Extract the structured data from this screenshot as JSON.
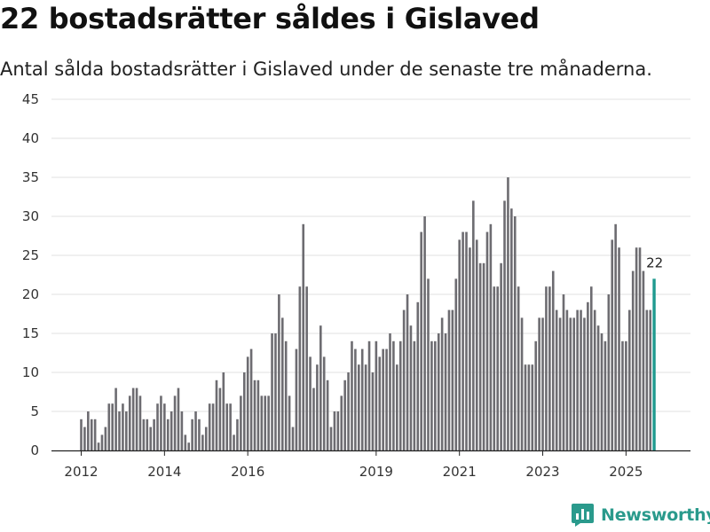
{
  "header": {
    "title": "22 bostadsrätter såldes i Gislaved",
    "subtitle": "Antal sålda bostadsrätter i Gislaved under de senaste tre månaderna."
  },
  "brand": {
    "name": "Newsworthy",
    "icon": "bar-chart-logo-icon",
    "color": "#2a9a8c"
  },
  "colors": {
    "bar": "#6d6c71",
    "highlight": "#1f9a8f",
    "grid": "#e2e2e2"
  },
  "chart_data": {
    "type": "bar",
    "title": "22 bostadsrätter såldes i Gislaved",
    "xlabel": "",
    "ylabel": "",
    "ylim": [
      0,
      45
    ],
    "yticks": [
      0,
      5,
      10,
      15,
      20,
      25,
      30,
      35,
      40,
      45
    ],
    "xticks": [
      {
        "label": "2012",
        "index": 0
      },
      {
        "label": "2014",
        "index": 24
      },
      {
        "label": "2016",
        "index": 48
      },
      {
        "label": "2019",
        "index": 85
      },
      {
        "label": "2021",
        "index": 109
      },
      {
        "label": "2023",
        "index": 133
      },
      {
        "label": "2025",
        "index": 157
      }
    ],
    "grid": true,
    "series": [
      {
        "name": "Antal sålda bostadsrätter",
        "values": [
          4,
          3,
          5,
          4,
          4,
          1,
          2,
          3,
          6,
          6,
          8,
          5,
          6,
          5,
          7,
          8,
          8,
          7,
          4,
          4,
          3,
          4,
          6,
          7,
          6,
          4,
          5,
          7,
          8,
          5,
          2,
          1,
          4,
          5,
          4,
          2,
          3,
          6,
          6,
          9,
          8,
          10,
          6,
          6,
          2,
          4,
          7,
          10,
          12,
          13,
          9,
          9,
          7,
          7,
          7,
          15,
          15,
          20,
          17,
          14,
          7,
          3,
          13,
          21,
          29,
          21,
          12,
          8,
          11,
          16,
          12,
          9,
          3,
          5,
          5,
          7,
          9,
          10,
          14,
          13,
          11,
          13,
          11,
          14,
          10,
          14,
          12,
          13,
          13,
          15,
          14,
          11,
          14,
          18,
          20,
          16,
          14,
          19,
          28,
          30,
          22,
          14,
          14,
          15,
          17,
          15,
          18,
          18,
          22,
          27,
          28,
          28,
          26,
          32,
          27,
          24,
          24,
          28,
          29,
          21,
          21,
          24,
          32,
          35,
          31,
          30,
          21,
          17,
          11,
          11,
          11,
          14,
          17,
          17,
          21,
          21,
          23,
          18,
          17,
          20,
          18,
          17,
          17,
          18,
          18,
          17,
          19,
          21,
          18,
          16,
          15,
          14,
          20,
          27,
          29,
          26,
          14,
          14,
          18,
          23,
          26,
          26,
          23,
          18,
          18,
          22
        ]
      }
    ],
    "highlight": {
      "index": 165,
      "value": 22,
      "label": "22"
    }
  }
}
